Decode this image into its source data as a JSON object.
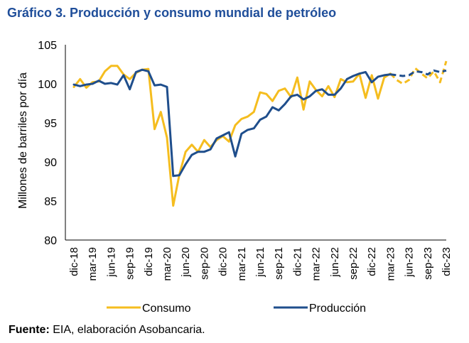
{
  "title": "Gráfico 3. Producción y consumo mundial de petróleo",
  "source": {
    "label": "Fuente:",
    "text": " EIA, elaboración Asobancaria."
  },
  "colors": {
    "consumo": "#F5BD1F",
    "produccion": "#1F4E8C",
    "axis": "#000000",
    "title": "#1F4E9A"
  },
  "chart_data": {
    "type": "line",
    "title": "Gráfico 3. Producción y consumo mundial de petróleo",
    "xlabel": "",
    "ylabel": "Millones de barriles por día",
    "ylim": [
      80,
      105
    ],
    "yticks": [
      80,
      85,
      90,
      95,
      100,
      105
    ],
    "xlim": [
      "dic-18",
      "dic-23"
    ],
    "xticks": [
      "dic-18",
      "mar-19",
      "jun-19",
      "sep-19",
      "dic-19",
      "mar-20",
      "jun-20",
      "sep-20",
      "dic-20",
      "mar-21",
      "jun-21",
      "sep-21",
      "dic-21",
      "mar-22",
      "jun-22",
      "sep-22",
      "dic-22",
      "mar-23",
      "jun-23",
      "sep-23",
      "dic-23"
    ],
    "grid": false,
    "legend": "bottom",
    "x": [
      "dic-18",
      "ene-19",
      "feb-19",
      "mar-19",
      "abr-19",
      "may-19",
      "jun-19",
      "jul-19",
      "ago-19",
      "sep-19",
      "oct-19",
      "nov-19",
      "dic-19",
      "ene-20",
      "feb-20",
      "mar-20",
      "abr-20",
      "may-20",
      "jun-20",
      "jul-20",
      "ago-20",
      "sep-20",
      "oct-20",
      "nov-20",
      "dic-20",
      "ene-21",
      "feb-21",
      "mar-21",
      "abr-21",
      "may-21",
      "jun-21",
      "jul-21",
      "ago-21",
      "sep-21",
      "oct-21",
      "nov-21",
      "dic-21",
      "ene-22",
      "feb-22",
      "mar-22",
      "abr-22",
      "may-22",
      "jun-22",
      "jul-22",
      "ago-22",
      "sep-22",
      "oct-22",
      "nov-22",
      "dic-22",
      "ene-23",
      "feb-23",
      "mar-23",
      "abr-23",
      "may-23",
      "jun-23",
      "jul-23",
      "ago-23",
      "sep-23",
      "oct-23",
      "nov-23",
      "dic-23"
    ],
    "series": [
      {
        "name": "Consumo",
        "forecast_from": "abr-23",
        "values": [
          99.6,
          100.6,
          99.5,
          100.2,
          100.3,
          101.6,
          102.3,
          102.3,
          101.2,
          100.6,
          101.4,
          101.8,
          101.9,
          94.2,
          96.4,
          93.1,
          84.4,
          88.4,
          91.3,
          92.2,
          91.3,
          92.8,
          91.9,
          92.8,
          93.3,
          92.6,
          94.7,
          95.5,
          95.8,
          96.4,
          98.9,
          98.7,
          97.8,
          99.1,
          99.4,
          98.3,
          100.8,
          96.7,
          100.3,
          99.2,
          98.4,
          99.7,
          98.3,
          100.6,
          100.2,
          100.3,
          101.3,
          98.2,
          101.1,
          98.1,
          100.8,
          101.3,
          100.5,
          100.0,
          100.5,
          102.0,
          101.3,
          100.7,
          101.6,
          100.2,
          102.9
        ]
      },
      {
        "name": "Producción",
        "forecast_from": "abr-23",
        "values": [
          99.9,
          99.7,
          99.9,
          100.0,
          100.4,
          100.0,
          100.1,
          99.9,
          101.1,
          99.3,
          101.5,
          101.8,
          101.6,
          99.8,
          99.9,
          99.6,
          88.2,
          88.3,
          89.7,
          90.9,
          91.3,
          91.3,
          91.6,
          93.0,
          93.4,
          93.8,
          90.7,
          93.6,
          94.1,
          94.3,
          95.4,
          95.8,
          97.0,
          96.6,
          97.4,
          98.4,
          98.6,
          98.0,
          98.4,
          99.1,
          99.3,
          98.6,
          98.6,
          99.4,
          100.6,
          101.0,
          101.3,
          101.5,
          100.2,
          100.9,
          101.1,
          101.2,
          101.1,
          101.0,
          101.1,
          101.6,
          101.5,
          101.2,
          101.7,
          101.5,
          101.7
        ]
      }
    ]
  }
}
